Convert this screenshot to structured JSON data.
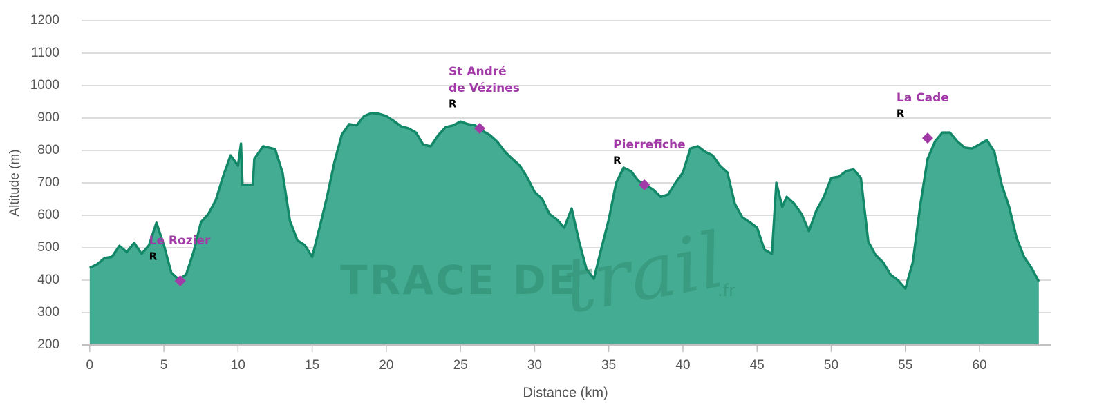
{
  "chart_data": {
    "type": "area",
    "x_label": "Distance (km)",
    "y_label": "Altitude (m)",
    "color": "#44ac93",
    "line_color": "#128868",
    "xlim": [
      -0.55,
      64.8
    ],
    "ylim": [
      200,
      1200
    ],
    "xticks": [
      0,
      5,
      10,
      15,
      20,
      25,
      30,
      35,
      40,
      45,
      50,
      55,
      60
    ],
    "yticks": [
      200,
      300,
      400,
      500,
      600,
      700,
      800,
      900,
      1000,
      1100,
      1200
    ],
    "grid": true,
    "x": [
      0,
      0.5,
      1,
      1.5,
      2,
      2.5,
      3,
      3.5,
      4,
      4.5,
      5,
      5.5,
      6,
      6.5,
      7,
      7.5,
      8,
      8.5,
      9,
      9.5,
      10,
      10.2,
      10.3,
      11,
      11.1,
      11.7,
      12.5,
      13,
      13.5,
      14,
      14.5,
      15,
      15.5,
      16,
      16.5,
      17,
      17.5,
      18,
      18.5,
      19,
      19.5,
      20,
      20.5,
      21,
      21.5,
      22,
      22.5,
      23,
      23.5,
      24,
      24.5,
      25,
      25.5,
      26,
      26.5,
      27,
      27.5,
      28,
      28.5,
      29,
      29.5,
      30,
      30.5,
      31,
      31.5,
      32,
      32.5,
      33,
      33.5,
      34,
      34.5,
      35,
      35.5,
      36,
      36.5,
      37,
      37.5,
      38,
      38.5,
      39,
      39.5,
      40,
      40.5,
      41,
      41.5,
      42,
      42.5,
      43,
      43.5,
      44,
      44.5,
      45,
      45.5,
      46,
      46.3,
      46.7,
      47,
      47.5,
      48,
      48.5,
      49,
      49.5,
      50,
      50.5,
      51,
      51.5,
      52,
      52.5,
      53,
      53.5,
      54,
      54.5,
      55,
      55.5,
      56,
      56.5,
      57,
      57.5,
      58,
      58.5,
      59,
      59.5,
      60,
      60.5,
      61,
      61.5,
      62,
      62.5,
      63,
      63.5,
      64
    ],
    "values": [
      438,
      449,
      468,
      472,
      506,
      487,
      515,
      481,
      508,
      577,
      508,
      423,
      402,
      417,
      487,
      579,
      604,
      647,
      721,
      785,
      753,
      821,
      694,
      694,
      774,
      813,
      804,
      732,
      583,
      523,
      508,
      472,
      562,
      657,
      764,
      849,
      881,
      877,
      906,
      915,
      913,
      906,
      891,
      874,
      868,
      855,
      817,
      813,
      847,
      872,
      877,
      889,
      881,
      877,
      860,
      847,
      826,
      796,
      774,
      753,
      717,
      672,
      651,
      604,
      587,
      562,
      621,
      519,
      434,
      404,
      498,
      587,
      700,
      747,
      736,
      706,
      694,
      679,
      657,
      664,
      700,
      732,
      806,
      813,
      796,
      785,
      753,
      732,
      636,
      594,
      579,
      562,
      494,
      481,
      700,
      626,
      657,
      636,
      604,
      551,
      615,
      657,
      715,
      719,
      736,
      742,
      715,
      519,
      477,
      455,
      417,
      400,
      374,
      455,
      630,
      774,
      828,
      855,
      855,
      828,
      809,
      806,
      819,
      832,
      796,
      694,
      626,
      530,
      472,
      438,
      396
    ],
    "waypoints": {
      "color": "#a23aa8",
      "x": [
        6.1,
        26.3,
        37.4,
        56.5
      ],
      "values": [
        398,
        868,
        694,
        838
      ],
      "names": [
        [
          "Le Rozier"
        ],
        [
          "St André",
          "de Vézines"
        ],
        [
          "Pierrefiche"
        ],
        [
          "La Cade"
        ]
      ],
      "markers": [
        "R",
        "R",
        "R",
        "R"
      ]
    },
    "watermark": [
      "TRACE DE",
      "trail",
      ".fr"
    ]
  }
}
